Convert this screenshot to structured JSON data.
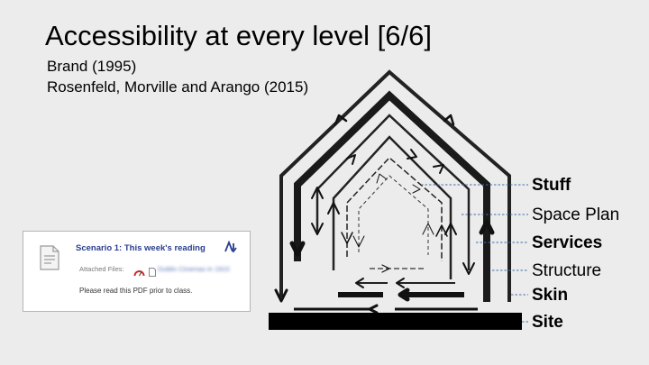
{
  "slide": {
    "title": "Accessibility at every level [6/6]",
    "citations": [
      "Brand (1995)",
      "Rosenfeld, Morville and Arango (2015)"
    ]
  },
  "card": {
    "title": "Scenario 1: This week's reading",
    "attached_label": "Attached Files:",
    "file_name": "Dublin Cinemas in 1910",
    "note": "Please read this PDF prior to class."
  },
  "layers": [
    {
      "label": "Stuff",
      "bold": true
    },
    {
      "label": "Space Plan",
      "bold": false
    },
    {
      "label": "Services",
      "bold": true
    },
    {
      "label": "Structure",
      "bold": false
    },
    {
      "label": "Skin",
      "bold": true
    },
    {
      "label": "Site",
      "bold": true
    }
  ],
  "colors": {
    "background": "#ececec",
    "ink": "#000000",
    "leader_line": "#3f6fa6",
    "card_title": "#2a3d8f"
  }
}
